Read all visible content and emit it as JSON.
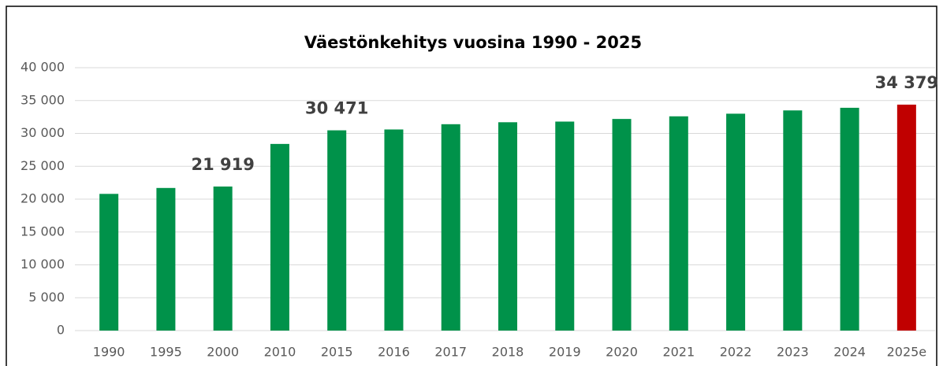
{
  "chart_data": {
    "type": "bar",
    "title": "Väestönkehitys vuosina 1990 - 2025",
    "categories": [
      "1990",
      "1995",
      "2000",
      "2010",
      "2015",
      "2016",
      "2017",
      "2018",
      "2019",
      "2020",
      "2021",
      "2022",
      "2023",
      "2024",
      "2025e"
    ],
    "values": [
      20800,
      21700,
      21919,
      28400,
      30471,
      30600,
      31400,
      31700,
      31800,
      32200,
      32600,
      33000,
      33500,
      33900,
      34379
    ],
    "value_labels": [
      null,
      null,
      "21 919",
      null,
      "30 471",
      null,
      null,
      null,
      null,
      null,
      null,
      null,
      null,
      null,
      "34 379"
    ],
    "colors": [
      "#00924a",
      "#00924a",
      "#00924a",
      "#00924a",
      "#00924a",
      "#00924a",
      "#00924a",
      "#00924a",
      "#00924a",
      "#00924a",
      "#00924a",
      "#00924a",
      "#00924a",
      "#00924a",
      "#c00000"
    ],
    "ylim": [
      0,
      40000
    ],
    "yticks": [
      0,
      {
        "value": 5000,
        "label": "5 000"
      },
      {
        "value": 10000,
        "label": "10 000"
      },
      {
        "value": 15000,
        "label": "15 000"
      },
      {
        "value": 20000,
        "label": "20 000"
      },
      {
        "value": 25000,
        "label": "25 000"
      },
      {
        "value": 30000,
        "label": "30 000"
      },
      {
        "value": 35000,
        "label": "35 000"
      },
      {
        "value": 40000,
        "label": "40 000"
      }
    ],
    "grid": true
  }
}
